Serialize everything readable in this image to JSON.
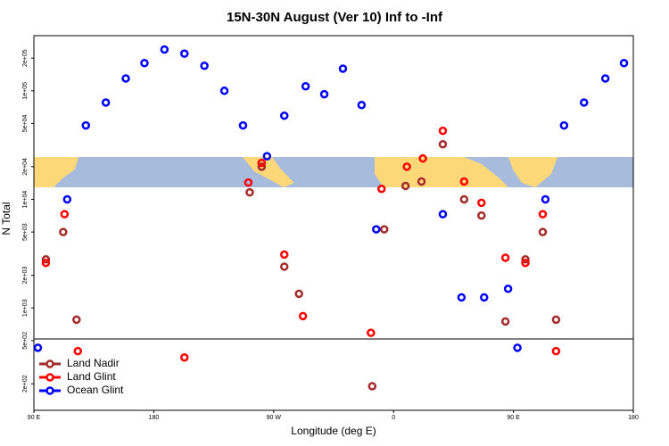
{
  "chart_data": {
    "type": "scatter",
    "title": "15N-30N August (Ver 10)   Inf to -Inf",
    "x_label": "Longitude (deg E)",
    "y_label": "N Total",
    "log_y": true,
    "xlim": [
      90,
      540
    ],
    "ylim": [
      114,
      322000
    ],
    "xticks": [
      {
        "value": 90,
        "label": "90 E"
      },
      180,
      {
        "value": 270,
        "label": "90 W"
      },
      {
        "value": 360,
        "label": "0"
      },
      {
        "value": 450,
        "label": "90 E"
      },
      {
        "value": 540,
        "label": "180"
      }
    ],
    "yticks": [
      {
        "value": 200000,
        "label": "2e+05"
      },
      {
        "value": 100000,
        "label": "1e+05"
      },
      {
        "value": 50000,
        "label": "5e+04"
      },
      {
        "value": 20000,
        "label": "2e+04"
      },
      {
        "value": 10000,
        "label": "1e+04"
      },
      {
        "value": 5000,
        "label": "5e+03"
      },
      {
        "value": 2000,
        "label": "2e+03"
      },
      {
        "value": 1000,
        "label": "1e+03"
      },
      {
        "value": 500,
        "label": "5e+02"
      },
      {
        "value": 200,
        "label": "2e+02"
      }
    ],
    "legend": "bottom-left",
    "series": [
      {
        "name": "Land Nadir",
        "color": "#a52a2a",
        "x": [
          99,
          112,
          122,
          252,
          261,
          278,
          289,
          344,
          353,
          369,
          381,
          397,
          413,
          426,
          444,
          459,
          472,
          482
        ],
        "values": [
          2800,
          5000,
          780,
          11600,
          20000,
          2400,
          1350,
          190,
          5300,
          13300,
          14600,
          32200,
          10000,
          7100,
          750,
          2800,
          5000,
          780
        ]
      },
      {
        "name": "Land Glint",
        "color": "#ff0000",
        "x": [
          99,
          113,
          123,
          203,
          251,
          261,
          278,
          292,
          343,
          351,
          370,
          382,
          397,
          413,
          426,
          444,
          459,
          472,
          482
        ],
        "values": [
          2600,
          7300,
          400,
          350,
          14300,
          21700,
          3100,
          840,
          590,
          12500,
          20000,
          23800,
          42800,
          14600,
          9300,
          2900,
          2600,
          7300,
          400
        ]
      },
      {
        "name": "Ocean Glint",
        "color": "#0000ff",
        "x": [
          93,
          115,
          129,
          144,
          159,
          173,
          188,
          203,
          218,
          233,
          247,
          265,
          278,
          294,
          308,
          322,
          336,
          347,
          397,
          411,
          428,
          446,
          453,
          474,
          488,
          503,
          519,
          533
        ],
        "values": [
          430,
          10000,
          48000,
          78000,
          130000,
          180000,
          240000,
          220000,
          170000,
          100000,
          48000,
          25000,
          59000,
          110000,
          93000,
          160000,
          74000,
          5300,
          7300,
          1250,
          1250,
          1500,
          430,
          10000,
          48000,
          78000,
          130000,
          180000
        ]
      }
    ]
  }
}
